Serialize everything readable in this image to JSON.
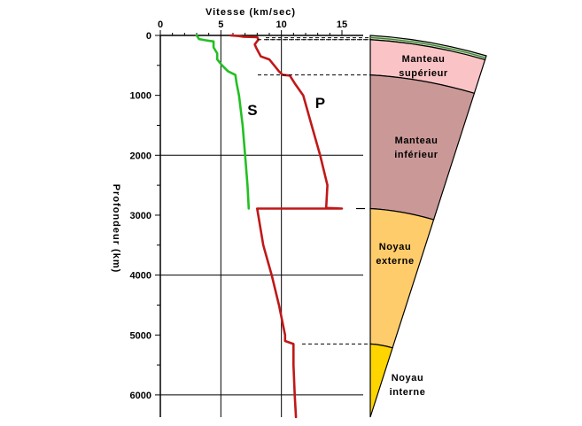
{
  "chart_data": {
    "type": "line",
    "title": "Vitesse (km/sec)",
    "ylabel": "Profondeur (km)",
    "xlim": [
      0,
      15
    ],
    "ylim": [
      0,
      6371
    ],
    "x_ticks": [
      0,
      5,
      10,
      15
    ],
    "y_ticks": [
      0,
      1000,
      2000,
      3000,
      4000,
      5000,
      6000
    ],
    "y_minor_step": 500,
    "grid": true,
    "series": [
      {
        "name": "P",
        "color": "#c01818",
        "points": [
          [
            5.8,
            0
          ],
          [
            6.5,
            10
          ],
          [
            6.8,
            20
          ],
          [
            8.0,
            30
          ],
          [
            8.1,
            70
          ],
          [
            7.8,
            150
          ],
          [
            7.9,
            200
          ],
          [
            8.3,
            350
          ],
          [
            9.0,
            400
          ],
          [
            9.4,
            500
          ],
          [
            9.8,
            600
          ],
          [
            10.1,
            660
          ],
          [
            10.7,
            670
          ],
          [
            11.1,
            800
          ],
          [
            11.8,
            1000
          ],
          [
            12.5,
            1500
          ],
          [
            13.2,
            2000
          ],
          [
            13.8,
            2500
          ],
          [
            13.7,
            2880
          ],
          [
            15.0,
            2890
          ],
          [
            8.0,
            2890
          ],
          [
            8.5,
            3500
          ],
          [
            9.2,
            4000
          ],
          [
            9.8,
            4500
          ],
          [
            10.3,
            5000
          ],
          [
            10.3,
            5100
          ],
          [
            11.0,
            5150
          ],
          [
            11.0,
            5500
          ],
          [
            11.1,
            6000
          ],
          [
            11.2,
            6371
          ]
        ]
      },
      {
        "name": "S",
        "color": "#22c022",
        "points": [
          [
            3.0,
            0
          ],
          [
            3.2,
            60
          ],
          [
            3.7,
            80
          ],
          [
            4.4,
            100
          ],
          [
            4.4,
            200
          ],
          [
            4.7,
            300
          ],
          [
            4.7,
            400
          ],
          [
            5.1,
            500
          ],
          [
            5.6,
            600
          ],
          [
            6.2,
            660
          ],
          [
            6.3,
            800
          ],
          [
            6.5,
            1000
          ],
          [
            6.8,
            1500
          ],
          [
            7.0,
            2000
          ],
          [
            7.2,
            2500
          ],
          [
            7.3,
            2890
          ]
        ]
      }
    ],
    "series_labels": [
      {
        "text": "S",
        "x": 7.6,
        "y": 1330
      },
      {
        "text": "P",
        "x": 13.2,
        "y": 1210
      }
    ],
    "boundaries_dashed_km": [
      70,
      660,
      5150
    ],
    "boundary_tick_km": 2890
  },
  "layers": [
    {
      "name": "crust",
      "label_lines": [],
      "top_km": 0,
      "bottom_km": 70,
      "color": "#c4dfb0",
      "stripe": true
    },
    {
      "name": "upper-mantle",
      "label_lines": [
        "Manteau",
        "supérieur"
      ],
      "top_km": 70,
      "bottom_km": 660,
      "color": "#fac4c6"
    },
    {
      "name": "lower-mantle",
      "label_lines": [
        "Manteau",
        "inférieur"
      ],
      "top_km": 660,
      "bottom_km": 2890,
      "color": "#cb9898"
    },
    {
      "name": "outer-core",
      "label_lines": [
        "Noyau",
        "externe"
      ],
      "top_km": 2890,
      "bottom_km": 5150,
      "color": "#fecc6a"
    },
    {
      "name": "inner-core",
      "label_lines": [
        "Noyau",
        "interne"
      ],
      "top_km": 5150,
      "bottom_km": 6371,
      "color": "#ffd500"
    }
  ]
}
